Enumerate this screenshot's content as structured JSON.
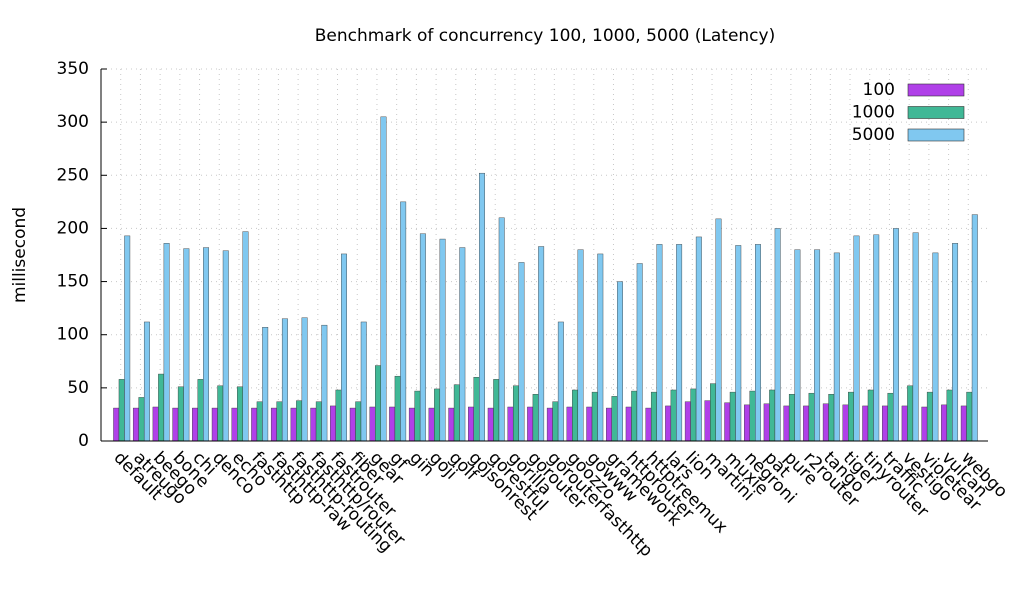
{
  "chart_data": {
    "type": "bar",
    "title": "Benchmark of concurrency 100, 1000, 5000 (Latency)",
    "y_label": "millisecond",
    "categories": [
      "default",
      "atreugo",
      "beego",
      "bone",
      "chi",
      "denco",
      "echo",
      "fasthttp",
      "fasthttp-raw",
      "fasthttp-routing",
      "fasthttp/router",
      "fastrouter",
      "fiber",
      "gear",
      "gf",
      "gin",
      "goji",
      "golf",
      "gojsonrest",
      "gorestful",
      "gorilla",
      "gorouter",
      "gorouterfasthttp",
      "goozzo",
      "gowww",
      "gramework",
      "httprouter",
      "httptreemux",
      "lars",
      "lion",
      "martini",
      "muxie",
      "negroni",
      "pat",
      "pure",
      "r2router",
      "tango",
      "tiger",
      "tinyrouter",
      "traffic",
      "vestigo",
      "violetear",
      "vulcan",
      "webgo"
    ],
    "series": [
      {
        "name": "100",
        "color": "#b040e8",
        "values": [
          31,
          31,
          32,
          31,
          31,
          31,
          31,
          31,
          31,
          31,
          31,
          33,
          31,
          32,
          32,
          31,
          31,
          31,
          32,
          31,
          32,
          32,
          31,
          32,
          32,
          31,
          32,
          31,
          33,
          37,
          38,
          36,
          34,
          35,
          33,
          33,
          35,
          34,
          33,
          33,
          33,
          32,
          34,
          33
        ]
      },
      {
        "name": "1000",
        "color": "#40b896",
        "values": [
          58,
          41,
          63,
          51,
          58,
          52,
          51,
          37,
          37,
          38,
          37,
          48,
          37,
          71,
          61,
          47,
          49,
          53,
          60,
          58,
          52,
          44,
          37,
          48,
          46,
          42,
          47,
          46,
          48,
          49,
          54,
          46,
          47,
          48,
          44,
          45,
          44,
          46,
          48,
          45,
          52,
          46,
          48,
          46
        ]
      },
      {
        "name": "5000",
        "color": "#80c8f0",
        "values": [
          193,
          112,
          186,
          181,
          182,
          179,
          197,
          107,
          115,
          116,
          109,
          176,
          112,
          305,
          225,
          195,
          190,
          182,
          252,
          210,
          168,
          183,
          112,
          180,
          176,
          150,
          167,
          185,
          185,
          192,
          209,
          184,
          185,
          200,
          180,
          180,
          177,
          193,
          194,
          200,
          196,
          177,
          186,
          213
        ]
      }
    ],
    "ylim": [
      0,
      350
    ],
    "yticks": [
      0,
      50,
      100,
      150,
      200,
      250,
      300,
      350
    ],
    "grid": true,
    "legend": "top-right"
  }
}
